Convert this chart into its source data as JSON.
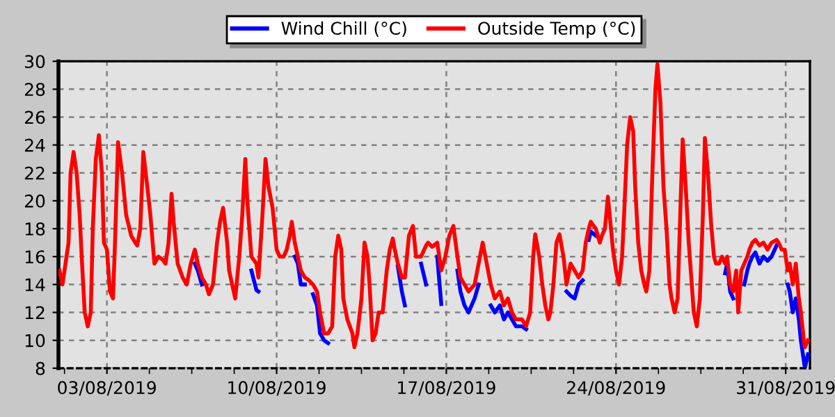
{
  "chart_data": {
    "type": "line",
    "x": [
      "2019-08-01T01:00",
      "2019-08-01T04:00",
      "2019-08-01T10:00",
      "2019-08-01T12:00",
      "2019-08-01T15:00",
      "2019-08-01T18:00",
      "2019-08-01T21:00",
      "2019-08-01T23:00",
      "2019-08-02T02:00",
      "2019-08-02T05:00",
      "2019-08-02T08:00",
      "2019-08-02T10:00",
      "2019-08-02T13:00",
      "2019-08-02T16:00",
      "2019-08-02T19:00",
      "2019-08-02T21:00",
      "2019-08-03T00:00",
      "2019-08-03T03:00",
      "2019-08-03T06:00",
      "2019-08-03T08:00",
      "2019-08-03T11:00",
      "2019-08-03T15:00",
      "2019-08-03T19:00",
      "2019-08-04T00:00",
      "2019-08-04T04:00",
      "2019-08-04T06:00",
      "2019-08-04T09:00",
      "2019-08-04T12:00",
      "2019-08-04T16:00",
      "2019-08-04T19:00",
      "2019-08-04T23:00",
      "2019-08-05T03:00",
      "2019-08-05T07:00",
      "2019-08-05T10:00",
      "2019-08-05T13:00",
      "2019-08-05T16:00",
      "2019-08-05T18:00",
      "2019-08-05T22:00",
      "2019-08-06T03:00",
      "2019-08-06T07:00",
      "2019-08-06T11:00",
      "2019-08-06T15:00",
      "2019-08-06T18:00",
      "2019-08-06T22:00",
      "2019-08-07T02:00",
      "2019-08-07T05:00",
      "2019-08-07T09:00",
      "2019-08-07T13:00",
      "2019-08-07T16:00",
      "2019-08-07T19:00",
      "2019-08-07T23:00",
      "2019-08-08T01:00",
      "2019-08-08T04:00",
      "2019-08-08T07:00",
      "2019-08-08T11:00",
      "2019-08-08T14:00",
      "2019-08-08T17:00",
      "2019-08-08T19:00",
      "2019-08-08T23:00",
      "2019-08-09T04:00",
      "2019-08-09T06:00",
      "2019-08-09T10:00",
      "2019-08-09T13:00",
      "2019-08-09T16:00",
      "2019-08-09T20:00",
      "2019-08-10T00:00",
      "2019-08-10T03:00",
      "2019-08-10T07:00",
      "2019-08-10T10:00",
      "2019-08-10T13:00",
      "2019-08-10T15:00",
      "2019-08-10T18:00",
      "2019-08-10T21:00",
      "2019-08-11T00:00",
      "2019-08-11T04:00",
      "2019-08-11T08:00",
      "2019-08-11T12:00",
      "2019-08-11T16:00",
      "2019-08-11T19:00",
      "2019-08-11T23:00",
      "2019-08-12T03:00",
      "2019-08-12T07:00",
      "2019-08-12T10:00",
      "2019-08-12T13:00",
      "2019-08-12T16:00",
      "2019-08-12T18:00",
      "2019-08-12T22:00",
      "2019-08-13T03:00",
      "2019-08-13T05:00",
      "2019-08-13T08:00",
      "2019-08-13T12:00",
      "2019-08-13T15:00",
      "2019-08-13T18:00",
      "2019-08-13T20:00",
      "2019-08-13T23:00",
      "2019-08-14T02:00",
      "2019-08-14T05:00",
      "2019-08-14T09:00",
      "2019-08-14T13:00",
      "2019-08-14T16:00",
      "2019-08-14T19:00",
      "2019-08-14T21:00",
      "2019-08-15T00:00",
      "2019-08-15T04:00",
      "2019-08-15T07:00",
      "2019-08-15T11:00",
      "2019-08-15T15:00",
      "2019-08-15T18:00",
      "2019-08-15T23:00",
      "2019-08-16T04:00",
      "2019-08-16T06:00",
      "2019-08-16T10:00",
      "2019-08-16T15:00",
      "2019-08-16T19:00",
      "2019-08-16T23:00",
      "2019-08-17T03:00",
      "2019-08-17T07:00",
      "2019-08-17T11:00",
      "2019-08-17T14:00",
      "2019-08-17T18:00",
      "2019-08-17T22:00",
      "2019-08-18T04:00",
      "2019-08-18T08:00",
      "2019-08-18T12:00",
      "2019-08-18T16:00",
      "2019-08-18T20:00",
      "2019-08-19T00:00",
      "2019-08-19T05:00",
      "2019-08-19T09:00",
      "2019-08-19T13:00",
      "2019-08-19T17:00",
      "2019-08-19T21:00",
      "2019-08-20T03:00",
      "2019-08-20T07:00",
      "2019-08-20T11:00",
      "2019-08-20T14:00",
      "2019-08-20T16:00",
      "2019-08-20T20:00",
      "2019-08-20T23:00",
      "2019-08-21T02:00",
      "2019-08-21T05:00",
      "2019-08-21T07:00",
      "2019-08-21T10:00",
      "2019-08-21T13:00",
      "2019-08-21T16:00",
      "2019-08-21T20:00",
      "2019-08-21T23:00",
      "2019-08-22T03:00",
      "2019-08-22T07:00",
      "2019-08-22T11:00",
      "2019-08-22T15:00",
      "2019-08-22T18:00",
      "2019-08-22T21:00",
      "2019-08-22T23:00",
      "2019-08-23T04:00",
      "2019-08-23T08:00",
      "2019-08-23T10:00",
      "2019-08-23T13:00",
      "2019-08-23T16:00",
      "2019-08-23T19:00",
      "2019-08-23T21:00",
      "2019-08-24T00:00",
      "2019-08-24T03:00",
      "2019-08-24T06:00",
      "2019-08-24T08:00",
      "2019-08-24T11:00",
      "2019-08-24T14:00",
      "2019-08-24T17:00",
      "2019-08-24T19:00",
      "2019-08-24T22:00",
      "2019-08-25T01:00",
      "2019-08-25T04:00",
      "2019-08-25T06:00",
      "2019-08-25T09:00",
      "2019-08-25T12:00",
      "2019-08-25T15:00",
      "2019-08-25T17:00",
      "2019-08-25T20:00",
      "2019-08-25T23:00",
      "2019-08-26T02:00",
      "2019-08-26T05:00",
      "2019-08-26T07:00",
      "2019-08-26T10:00",
      "2019-08-26T13:00",
      "2019-08-26T16:00",
      "2019-08-26T18:00",
      "2019-08-26T21:00",
      "2019-08-27T00:00",
      "2019-08-27T03:00",
      "2019-08-27T05:00",
      "2019-08-27T08:00",
      "2019-08-27T11:00",
      "2019-08-27T14:00",
      "2019-08-27T16:00",
      "2019-08-27T19:00",
      "2019-08-27T22:00",
      "2019-08-28T01:00",
      "2019-08-28T03:00",
      "2019-08-28T06:00",
      "2019-08-28T09:00",
      "2019-08-28T12:00",
      "2019-08-28T14:00",
      "2019-08-28T17:00",
      "2019-08-28T20:00",
      "2019-08-28T23:00",
      "2019-08-29T01:00",
      "2019-08-29T04:00",
      "2019-08-29T07:00",
      "2019-08-29T10:00",
      "2019-08-29T12:00",
      "2019-08-29T15:00",
      "2019-08-29T18:00",
      "2019-08-29T22:00",
      "2019-08-30T02:00",
      "2019-08-30T06:00",
      "2019-08-30T10:00",
      "2019-08-30T15:00",
      "2019-08-30T17:00",
      "2019-08-30T20:00",
      "2019-08-30T23:00",
      "2019-08-31T02:00",
      "2019-08-31T04:00",
      "2019-08-31T07:00",
      "2019-08-31T10:00",
      "2019-08-31T13:00",
      "2019-08-31T15:00",
      "2019-08-31T18:00",
      "2019-08-31T19:00",
      "2019-08-31T22:00"
    ],
    "series": [
      {
        "name": "Wind Chill (°C)",
        "color": "#0000ff",
        "values": [
          null,
          null,
          null,
          null,
          null,
          null,
          null,
          null,
          null,
          null,
          null,
          null,
          null,
          null,
          null,
          null,
          null,
          null,
          null,
          null,
          null,
          null,
          null,
          null,
          null,
          null,
          null,
          null,
          null,
          null,
          null,
          null,
          null,
          null,
          null,
          null,
          null,
          null,
          null,
          null,
          null,
          15.5,
          15,
          14,
          null,
          null,
          null,
          null,
          null,
          null,
          null,
          null,
          null,
          null,
          null,
          null,
          null,
          null,
          15,
          13.6,
          13.5,
          null,
          null,
          null,
          null,
          null,
          null,
          null,
          null,
          null,
          null,
          16,
          15.5,
          14,
          14,
          null,
          13.3,
          12.5,
          10.5,
          10,
          9.8,
          null,
          null,
          null,
          null,
          null,
          null,
          null,
          null,
          null,
          null,
          null,
          null,
          null,
          null,
          null,
          null,
          null,
          null,
          null,
          null,
          null,
          15.3,
          13.5,
          12.5,
          null,
          null,
          null,
          15.5,
          14,
          null,
          null,
          16,
          12.6,
          null,
          null,
          null,
          15,
          13.5,
          12.5,
          12,
          13,
          14,
          null,
          null,
          12.5,
          12,
          12.5,
          11.5,
          12,
          11.5,
          11,
          11,
          10.8,
          null,
          null,
          null,
          null,
          null,
          null,
          null,
          null,
          null,
          null,
          null,
          null,
          13.5,
          13.2,
          13,
          14,
          14.3,
          null,
          17.2,
          17.8,
          17.5,
          null,
          null,
          null,
          null,
          null,
          null,
          null,
          null,
          null,
          null,
          null,
          null,
          null,
          null,
          null,
          null,
          null,
          null,
          null,
          null,
          null,
          null,
          null,
          null,
          null,
          null,
          null,
          null,
          null,
          null,
          null,
          null,
          null,
          null,
          null,
          null,
          null,
          null,
          null,
          null,
          null,
          null,
          null,
          null,
          null,
          14.8,
          15.5,
          13.5,
          13,
          null,
          null,
          null,
          14,
          15,
          15.5,
          16,
          16.3,
          15.5,
          16,
          15.7,
          16,
          16.8,
          null,
          null,
          null,
          14,
          13.5,
          12,
          13,
          11.5,
          10,
          8.5,
          8,
          9
        ]
      },
      {
        "name": "Outside Temp (°C)",
        "color": "#ff0000",
        "values": [
          15,
          14,
          17,
          22,
          23.5,
          22,
          19,
          16,
          12,
          11,
          12,
          18,
          23,
          24.7,
          22,
          17,
          16.5,
          13.5,
          13,
          17,
          24.2,
          22,
          19,
          17.5,
          17,
          16.8,
          18,
          23.5,
          21,
          19,
          15.5,
          16,
          15.8,
          15.5,
          17,
          20.5,
          18.5,
          15.5,
          14.5,
          14,
          15.5,
          16.5,
          15.5,
          14.5,
          14,
          13.3,
          14,
          17,
          18.5,
          19.5,
          17,
          15,
          14,
          13,
          16,
          19,
          23,
          20,
          16,
          15.5,
          14.5,
          19,
          23,
          21,
          19.5,
          16.5,
          16,
          16,
          16.5,
          17.5,
          18.5,
          17,
          16,
          15,
          14.5,
          14.3,
          14,
          13.5,
          12,
          10.5,
          10.5,
          11,
          16,
          17.5,
          16.5,
          13,
          11.5,
          10.5,
          9.5,
          10.5,
          13,
          17,
          16,
          14,
          10,
          10.5,
          12,
          12,
          15,
          16.5,
          17.3,
          16.5,
          15.5,
          14.5,
          14.5,
          17.5,
          18.2,
          16,
          16,
          16.8,
          17,
          16.7,
          17,
          15,
          16,
          17.5,
          18.2,
          16,
          14.5,
          14,
          13.5,
          14,
          15.5,
          17,
          15.5,
          14,
          13,
          13.5,
          12.5,
          13,
          12,
          11.5,
          11.5,
          11,
          12,
          16,
          17.6,
          16,
          14,
          12.5,
          11.5,
          12,
          14,
          17,
          17.6,
          16,
          14,
          15.5,
          15,
          14.5,
          15,
          17,
          18,
          18.5,
          18,
          17,
          17.5,
          18,
          20.3,
          18,
          16.5,
          15,
          14,
          16,
          19,
          24,
          26,
          25,
          21,
          17,
          15,
          14,
          13.5,
          15,
          22,
          28,
          29.8,
          27,
          21,
          18,
          14,
          13,
          12,
          13,
          20,
          24.4,
          21,
          17,
          14,
          12,
          11,
          13,
          19,
          24.5,
          22,
          18.5,
          16,
          15.5,
          15.5,
          16,
          15.5,
          16,
          14,
          13.5,
          15,
          12,
          15,
          15.5,
          16,
          16.5,
          17,
          17.2,
          16.8,
          17,
          16.5,
          17,
          17.2,
          17,
          16.5,
          16.5,
          15,
          15.5,
          14,
          15.5,
          13,
          12,
          10,
          9.5,
          10
        ]
      }
    ],
    "xlim": [
      "2019-08-01T00:00",
      "2019-09-01T00:00"
    ],
    "xticks": [
      {
        "value": "2019-08-01T06:00",
        "label": null
      },
      {
        "value": "2019-08-03T00:00",
        "label": "03/08/2019"
      },
      {
        "value": "2019-08-04T18:00",
        "label": null
      },
      {
        "value": "2019-08-06T12:00",
        "label": null
      },
      {
        "value": "2019-08-08T06:00",
        "label": null
      },
      {
        "value": "2019-08-10T00:00",
        "label": "10/08/2019"
      },
      {
        "value": "2019-08-11T18:00",
        "label": null
      },
      {
        "value": "2019-08-13T12:00",
        "label": null
      },
      {
        "value": "2019-08-15T06:00",
        "label": null
      },
      {
        "value": "2019-08-17T00:00",
        "label": "17/08/2019"
      },
      {
        "value": "2019-08-18T18:00",
        "label": null
      },
      {
        "value": "2019-08-20T12:00",
        "label": null
      },
      {
        "value": "2019-08-22T06:00",
        "label": null
      },
      {
        "value": "2019-08-24T00:00",
        "label": "24/08/2019"
      },
      {
        "value": "2019-08-25T18:00",
        "label": null
      },
      {
        "value": "2019-08-27T12:00",
        "label": null
      },
      {
        "value": "2019-08-29T06:00",
        "label": null
      },
      {
        "value": "2019-08-31T00:00",
        "label": "31/08/2019"
      }
    ],
    "ylim": [
      8,
      30
    ],
    "yticks": [
      8,
      10,
      12,
      14,
      16,
      18,
      20,
      22,
      24,
      26,
      28,
      30
    ],
    "grid": true,
    "legend": "top"
  }
}
